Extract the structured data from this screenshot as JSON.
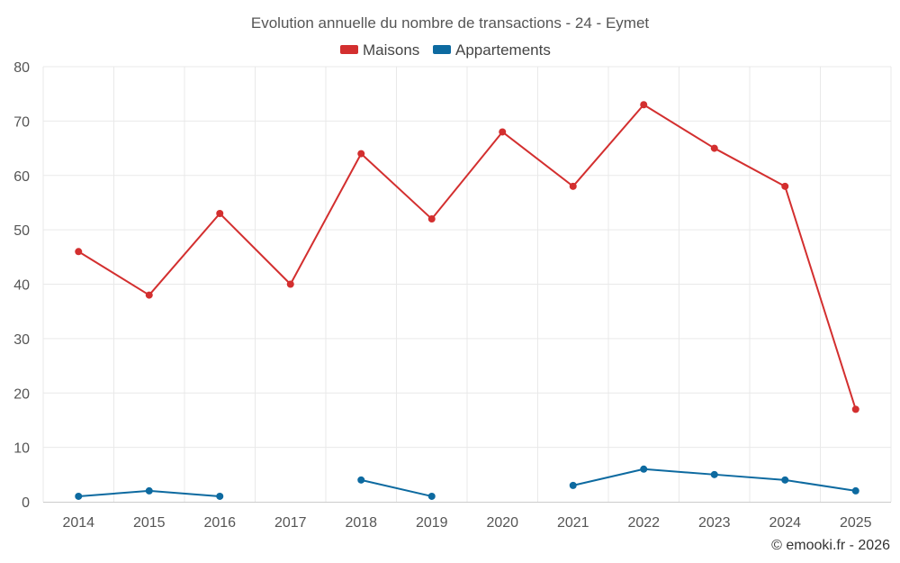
{
  "chart_data": {
    "type": "line",
    "title": "Evolution annuelle du nombre de transactions - 24 - Eymet",
    "categories": [
      "2014",
      "2015",
      "2016",
      "2017",
      "2018",
      "2019",
      "2020",
      "2021",
      "2022",
      "2023",
      "2024",
      "2025"
    ],
    "ylim": [
      0,
      80
    ],
    "yticks": [
      0,
      10,
      20,
      30,
      40,
      50,
      60,
      70,
      80
    ],
    "grid": true,
    "legend_position": "top-center",
    "series": [
      {
        "name": "Maisons",
        "color": "#d32f2f",
        "values": [
          46,
          38,
          53,
          40,
          64,
          52,
          68,
          58,
          73,
          65,
          58,
          17
        ]
      },
      {
        "name": "Appartements",
        "color": "#0d6aa0",
        "values": [
          1,
          2,
          1,
          null,
          4,
          1,
          null,
          3,
          6,
          5,
          4,
          2
        ]
      }
    ],
    "xlabel": "",
    "ylabel": ""
  },
  "credit": "© emooki.fr - 2026"
}
